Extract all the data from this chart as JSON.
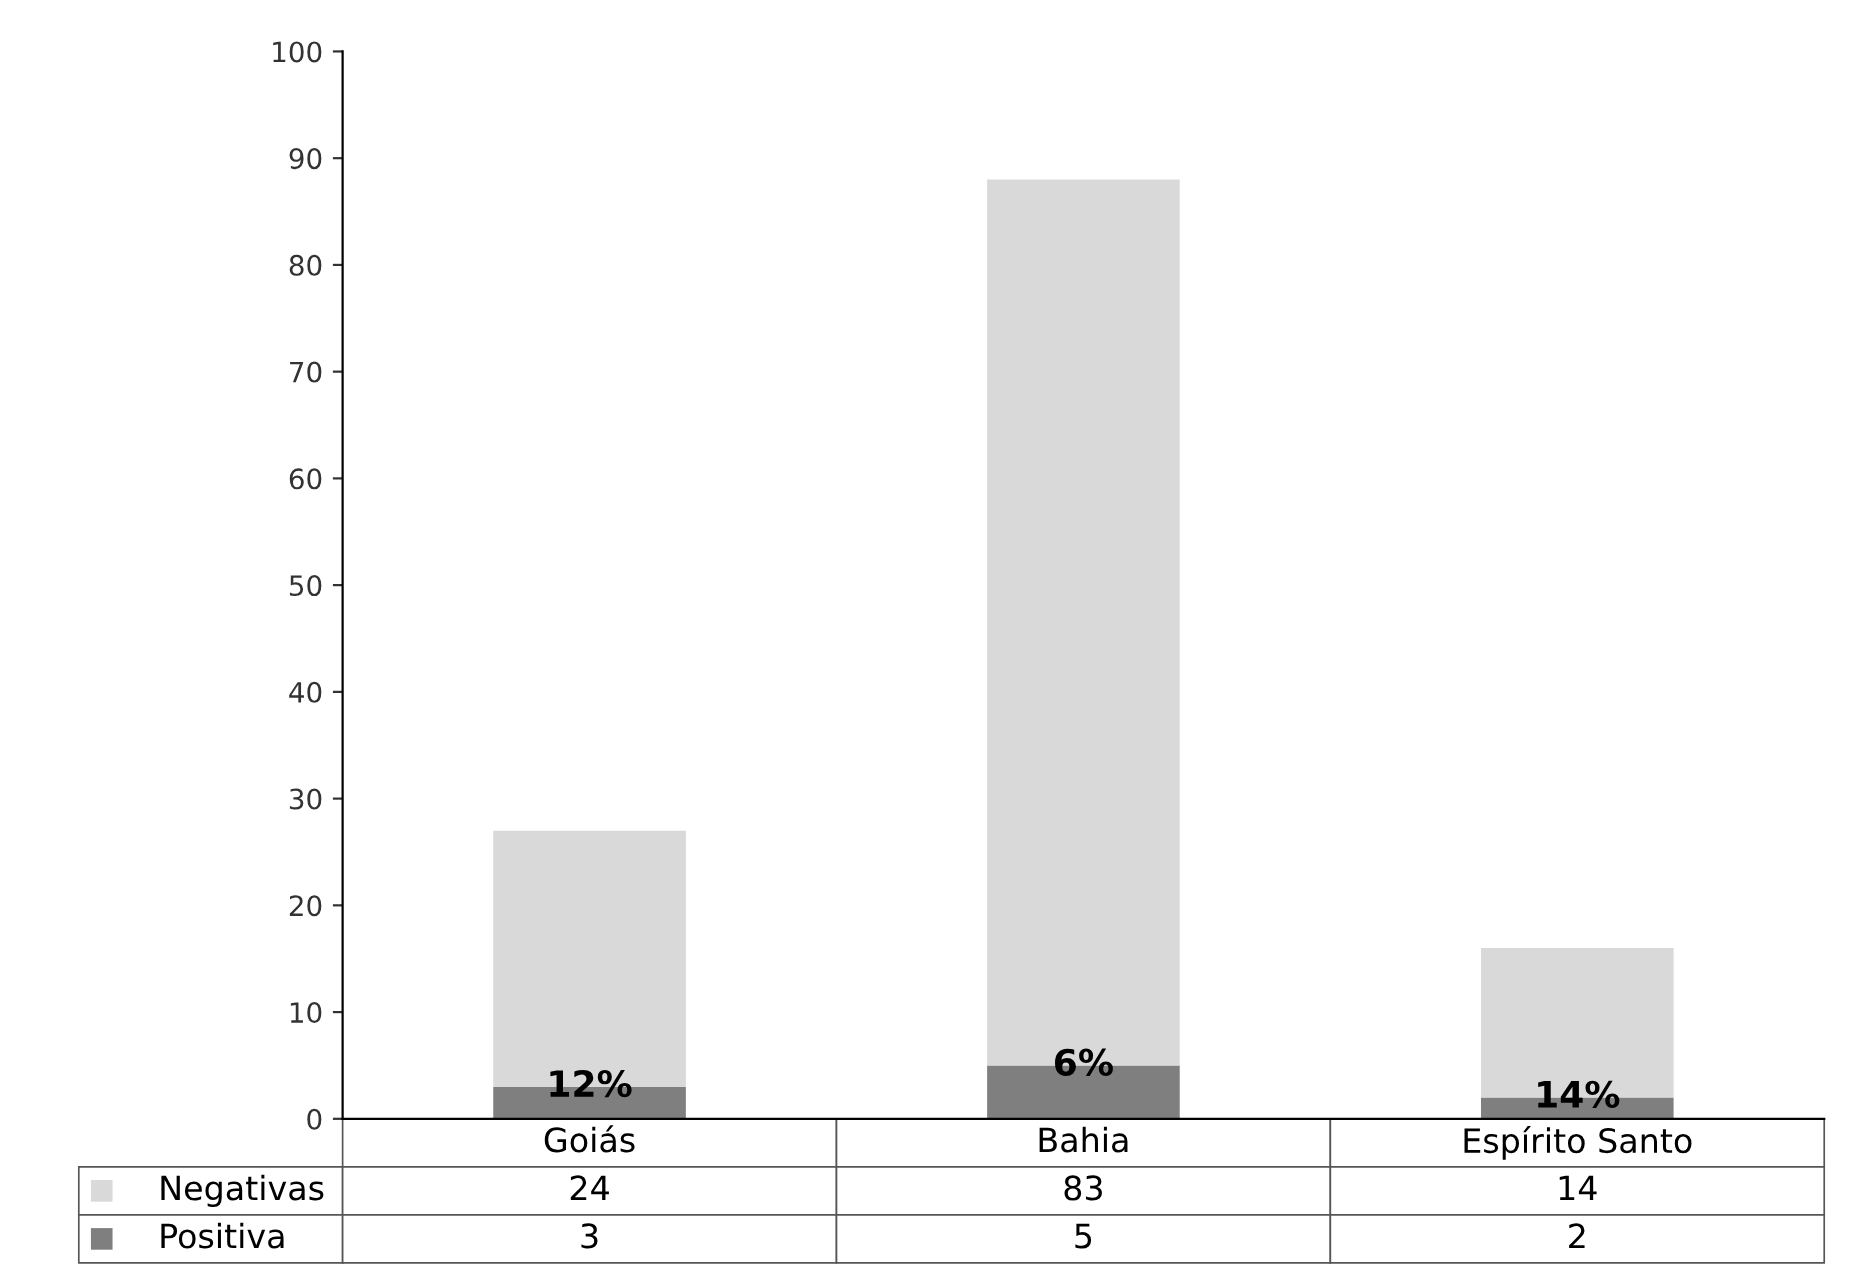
{
  "chart_data": {
    "type": "bar",
    "stacked": true,
    "categories": [
      "Goiás",
      "Bahia",
      "Espírito Santo"
    ],
    "series": [
      {
        "name": "Positiva",
        "color": "#7f7f7f",
        "values": [
          3,
          5,
          2
        ]
      },
      {
        "name": "Negativas",
        "color": "#d9d9d9",
        "values": [
          24,
          83,
          14
        ]
      }
    ],
    "ylim": [
      0,
      100
    ],
    "yticks": [
      0,
      10,
      20,
      30,
      40,
      50,
      60,
      70,
      80,
      90,
      100
    ],
    "grid": false,
    "legend": "bottom",
    "data_labels": true,
    "annotations": [
      {
        "text": "12%",
        "x": "Goiás",
        "y": 3
      },
      {
        "text": "6%",
        "x": "Bahia",
        "y": 5
      },
      {
        "text": "14%",
        "x": "Espírito Santo",
        "y": 2
      }
    ]
  }
}
